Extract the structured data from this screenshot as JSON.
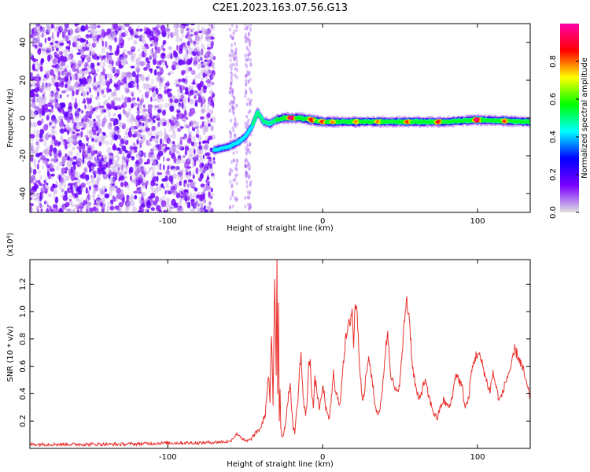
{
  "page_title": "C2E1.2023.163.07.56.G13",
  "colors": {
    "snr_line": "#e8322e",
    "colorbar_stops": [
      "#e0e0e0",
      "#7b00ff",
      "#0000ff",
      "#00ffff",
      "#00ff00",
      "#ffff00",
      "#ff0000",
      "#ff00aa"
    ]
  },
  "chart_data": [
    {
      "type": "heatmap",
      "title": "C2E1.2023.163.07.56.G13",
      "xlabel": "Height of straight line (km)",
      "ylabel": "Frequency (Hz)",
      "xlim": [
        -189,
        134
      ],
      "ylim": [
        -50,
        50
      ],
      "x_ticks": [
        -100,
        0,
        100
      ],
      "x_tick_labels": [
        "-100",
        "0",
        "100"
      ],
      "y_ticks": [
        -40,
        -20,
        0,
        20,
        40
      ],
      "y_tick_labels": [
        "-40",
        "-20",
        "0",
        "20",
        "40"
      ],
      "colorbar": {
        "label": "Normalized spectral amplitude",
        "range": [
          0,
          1
        ],
        "ticks": [
          0.0,
          0.2,
          0.4,
          0.6,
          0.8
        ],
        "tick_labels": [
          "0.0",
          "0.2",
          "0.4",
          "0.6",
          "0.8"
        ]
      },
      "noise_region_x": [
        -189,
        -70
      ],
      "sparse_noise_x": [
        [
          -60,
          -55
        ],
        [
          -50,
          -46
        ]
      ],
      "signal_track": [
        {
          "x": -70,
          "y": -17
        },
        {
          "x": -65,
          "y": -16
        },
        {
          "x": -60,
          "y": -15
        },
        {
          "x": -55,
          "y": -13
        },
        {
          "x": -50,
          "y": -10
        },
        {
          "x": -46,
          "y": -5
        },
        {
          "x": -42,
          "y": 3
        },
        {
          "x": -38,
          "y": -2
        },
        {
          "x": -34,
          "y": -3
        },
        {
          "x": -30,
          "y": -1
        },
        {
          "x": -25,
          "y": 0
        },
        {
          "x": -15,
          "y": 0
        },
        {
          "x": 0,
          "y": -2
        },
        {
          "x": 20,
          "y": -2
        },
        {
          "x": 50,
          "y": -2
        },
        {
          "x": 80,
          "y": -2
        },
        {
          "x": 100,
          "y": -1
        },
        {
          "x": 134,
          "y": -2
        }
      ],
      "hot_spots": [
        {
          "x": -20,
          "y": 0,
          "amp": 1.0
        },
        {
          "x": -7,
          "y": 0,
          "amp": 0.9
        },
        {
          "x": 0,
          "y": -2,
          "amp": 0.85
        },
        {
          "x": 7,
          "y": -2,
          "amp": 0.8
        },
        {
          "x": 22,
          "y": -2,
          "amp": 0.8
        },
        {
          "x": 36,
          "y": -2,
          "amp": 0.8
        },
        {
          "x": 55,
          "y": -2,
          "amp": 0.85
        },
        {
          "x": 75,
          "y": -2,
          "amp": 0.9
        },
        {
          "x": 100,
          "y": -1,
          "amp": 1.0
        },
        {
          "x": 118,
          "y": -2,
          "amp": 0.85
        }
      ]
    },
    {
      "type": "line",
      "xlabel": "Height of straight line (km)",
      "ylabel": "SNR (10 * v/v)",
      "y_scale_label": "(x10⁴)",
      "xlim": [
        -189,
        134
      ],
      "ylim": [
        0,
        1.38
      ],
      "x_ticks": [
        -100,
        0,
        100
      ],
      "x_tick_labels": [
        "-100",
        "0",
        "100"
      ],
      "y_ticks": [
        0.2,
        0.4,
        0.6,
        0.8,
        1.0,
        1.2
      ],
      "y_tick_labels": [
        "0.2",
        "0.4",
        "0.6",
        "0.8",
        "1.0",
        "1.2"
      ],
      "series": [
        {
          "x": [
            -189,
            -160,
            -130,
            -100,
            -80,
            -60,
            -55,
            -50,
            -47,
            -44,
            -40,
            -37,
            -35,
            -34,
            -33,
            -32,
            -31,
            -30,
            -29.5,
            -29,
            -28.5,
            -28,
            -27.5,
            -27,
            -26,
            -25,
            -24,
            -23,
            -22,
            -21,
            -20,
            -19,
            -18,
            -17,
            -16,
            -15,
            -14,
            -13,
            -12,
            -11,
            -10,
            -9,
            -8,
            -7,
            -6,
            -5,
            -4,
            -3,
            -2,
            -1,
            0,
            1,
            2,
            3,
            4,
            5,
            6,
            7,
            8,
            9,
            10,
            11,
            12,
            13,
            14,
            15,
            16,
            17,
            18,
            19,
            20,
            21,
            22,
            23,
            24,
            25,
            26,
            27,
            28,
            30,
            32,
            34,
            36,
            38,
            40,
            42,
            44,
            46,
            48,
            50,
            52,
            54,
            56,
            58,
            60,
            62,
            64,
            66,
            68,
            70,
            72,
            74,
            76,
            78,
            80,
            82,
            84,
            86,
            88,
            90,
            92,
            94,
            96,
            98,
            100,
            102,
            104,
            106,
            108,
            110,
            112,
            114,
            116,
            118,
            120,
            122,
            124,
            126,
            128,
            130,
            132,
            134
          ],
          "values": [
            0.03,
            0.03,
            0.03,
            0.04,
            0.04,
            0.05,
            0.11,
            0.05,
            0.06,
            0.1,
            0.15,
            0.25,
            0.55,
            0.35,
            0.85,
            0.3,
            1.25,
            0.55,
            1.4,
            0.4,
            1.1,
            0.2,
            0.45,
            0.15,
            0.08,
            0.12,
            0.18,
            0.3,
            0.4,
            0.45,
            0.3,
            0.15,
            0.12,
            0.25,
            0.35,
            0.55,
            0.7,
            0.45,
            0.3,
            0.25,
            0.35,
            0.6,
            0.65,
            0.4,
            0.3,
            0.5,
            0.45,
            0.35,
            0.3,
            0.35,
            0.45,
            0.4,
            0.3,
            0.25,
            0.2,
            0.3,
            0.4,
            0.55,
            0.45,
            0.4,
            0.35,
            0.3,
            0.45,
            0.6,
            0.7,
            0.8,
            0.85,
            0.9,
            0.95,
            1.02,
            0.75,
            1.05,
            1.07,
            0.8,
            0.6,
            0.45,
            0.35,
            0.4,
            0.55,
            0.65,
            0.5,
            0.3,
            0.25,
            0.35,
            0.65,
            0.85,
            0.55,
            0.45,
            0.4,
            0.5,
            0.8,
            1.1,
            0.95,
            0.6,
            0.45,
            0.35,
            0.42,
            0.5,
            0.4,
            0.32,
            0.25,
            0.22,
            0.3,
            0.35,
            0.32,
            0.3,
            0.4,
            0.55,
            0.5,
            0.45,
            0.3,
            0.35,
            0.55,
            0.65,
            0.7,
            0.65,
            0.58,
            0.48,
            0.42,
            0.55,
            0.45,
            0.35,
            0.4,
            0.48,
            0.55,
            0.6,
            0.72,
            0.68,
            0.62,
            0.55,
            0.45,
            0.38
          ]
        }
      ]
    }
  ]
}
